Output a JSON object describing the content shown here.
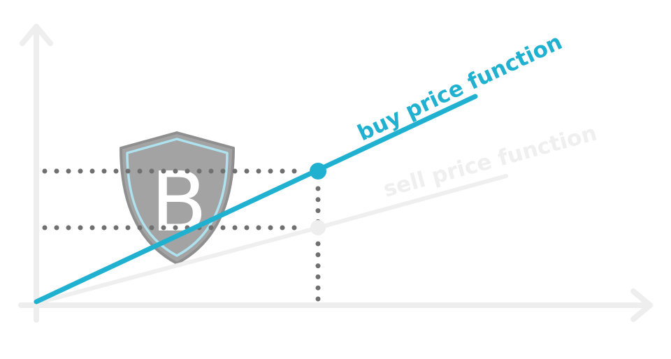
{
  "labels": {
    "buy": "buy price function",
    "sell": "sell price function",
    "badge_letter": "B"
  },
  "icons": {
    "badge": "shield-icon"
  },
  "colors": {
    "buy": "#20b1d1",
    "sell": "#efefef",
    "axis": "#eeeeee",
    "guide_dots": "#707070",
    "shield_fill": "#a3a3a3",
    "shield_outer": "#8f8f8f",
    "shield_inner": "#aee2ef",
    "badge_letter": "#ffffff"
  }
}
